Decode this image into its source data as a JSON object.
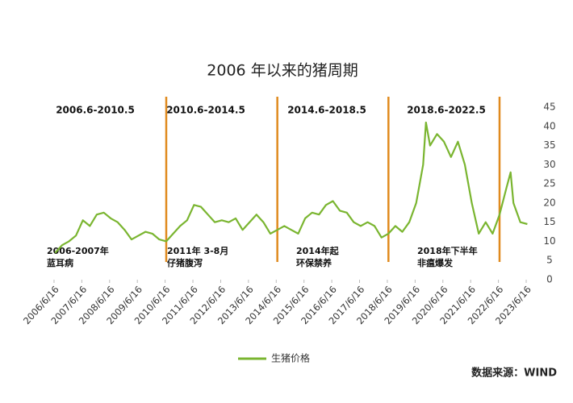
{
  "chart_data": {
    "type": "line",
    "title": "2006 年以来的猪周期",
    "source": "数据来源：WIND",
    "xlim": [
      2006.2,
      2023.75
    ],
    "ylim": [
      0,
      45
    ],
    "yticks": [
      0,
      5,
      10,
      15,
      20,
      25,
      30,
      35,
      40,
      45
    ],
    "xticks": [
      {
        "value": 2006.46,
        "label": "2006/6/16"
      },
      {
        "value": 2007.46,
        "label": "2007/6/16"
      },
      {
        "value": 2008.46,
        "label": "2008/6/16"
      },
      {
        "value": 2009.46,
        "label": "2009/6/16"
      },
      {
        "value": 2010.46,
        "label": "2010/6/16"
      },
      {
        "value": 2011.46,
        "label": "2011/6/16"
      },
      {
        "value": 2012.46,
        "label": "2012/6/16"
      },
      {
        "value": 2013.46,
        "label": "2013/6/16"
      },
      {
        "value": 2014.46,
        "label": "2014/6/16"
      },
      {
        "value": 2015.46,
        "label": "2015/6/16"
      },
      {
        "value": 2016.46,
        "label": "2016/6/16"
      },
      {
        "value": 2017.46,
        "label": "2017/6/16"
      },
      {
        "value": 2018.46,
        "label": "2018/6/16"
      },
      {
        "value": 2019.46,
        "label": "2019/6/16"
      },
      {
        "value": 2020.46,
        "label": "2020/6/16"
      },
      {
        "value": 2021.46,
        "label": "2021/6/16"
      },
      {
        "value": 2022.46,
        "label": "2022/6/16"
      },
      {
        "value": 2023.46,
        "label": "2023/6/16"
      }
    ],
    "dividers": {
      "color": "#e08a1e",
      "x": [
        2010.5,
        2014.5,
        2018.5,
        2022.5
      ]
    },
    "periods": [
      "2006.6-2010.5",
      "2010.6-2014.5",
      "2014.6-2018.5",
      "2018.6-2022.5"
    ],
    "annotations": [
      [
        "2006-2007年",
        "蓝耳病"
      ],
      [
        "2011年 3-8月",
        "仔猪腹泻"
      ],
      [
        "2014年起",
        "环保禁养"
      ],
      [
        "2018年下半年",
        "非瘟爆发"
      ]
    ],
    "series": [
      {
        "name": "生猪价格",
        "color": "#7ab530",
        "x": [
          2006.5,
          2006.75,
          2007.0,
          2007.25,
          2007.5,
          2007.75,
          2008.0,
          2008.25,
          2008.5,
          2008.75,
          2009.0,
          2009.25,
          2009.5,
          2009.75,
          2010.0,
          2010.25,
          2010.5,
          2010.75,
          2011.0,
          2011.25,
          2011.5,
          2011.75,
          2012.0,
          2012.25,
          2012.5,
          2012.75,
          2013.0,
          2013.25,
          2013.5,
          2013.75,
          2014.0,
          2014.25,
          2014.5,
          2014.75,
          2015.0,
          2015.25,
          2015.5,
          2015.75,
          2016.0,
          2016.25,
          2016.5,
          2016.75,
          2017.0,
          2017.25,
          2017.5,
          2017.75,
          2018.0,
          2018.25,
          2018.5,
          2018.75,
          2019.0,
          2019.25,
          2019.5,
          2019.75,
          2019.85,
          2020.0,
          2020.25,
          2020.5,
          2020.75,
          2021.0,
          2021.25,
          2021.5,
          2021.75,
          2022.0,
          2022.25,
          2022.5,
          2022.75,
          2022.9,
          2023.0,
          2023.25,
          2023.5
        ],
        "values": [
          7,
          9,
          10,
          11.5,
          15.5,
          14,
          17,
          17.5,
          16,
          15,
          13,
          10.5,
          11.5,
          12.5,
          12,
          10.5,
          10,
          12,
          14,
          15.5,
          19.5,
          19,
          17,
          15,
          15.5,
          15,
          16,
          13,
          15,
          17,
          15,
          12,
          13,
          14,
          13,
          12,
          16,
          17.5,
          17,
          19.5,
          20.5,
          18,
          17.5,
          15,
          14,
          15,
          14,
          11,
          12,
          14,
          12.5,
          15,
          20,
          30,
          41,
          35,
          38,
          36,
          32,
          36,
          30,
          20,
          12,
          15,
          12,
          17,
          24,
          28,
          20,
          15,
          14.5
        ]
      }
    ]
  }
}
